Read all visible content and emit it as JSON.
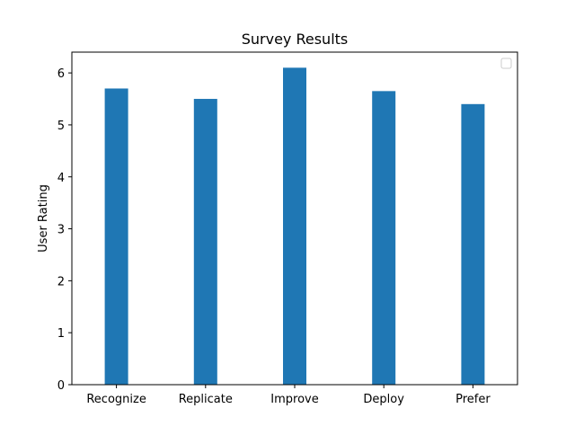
{
  "chart_data": {
    "type": "bar",
    "title": "Survey Results",
    "xlabel": "",
    "ylabel": "User Rating",
    "categories": [
      "Recognize",
      "Replicate",
      "Improve",
      "Deploy",
      "Prefer"
    ],
    "values": [
      5.7,
      5.5,
      6.1,
      5.65,
      5.4
    ],
    "ylim": [
      0,
      6.4
    ],
    "yticks": [
      0,
      1,
      2,
      3,
      4,
      5,
      6
    ],
    "grid": false,
    "legend": {
      "placement": "upper right",
      "entries": []
    },
    "bar_color": "#1f77b4"
  }
}
